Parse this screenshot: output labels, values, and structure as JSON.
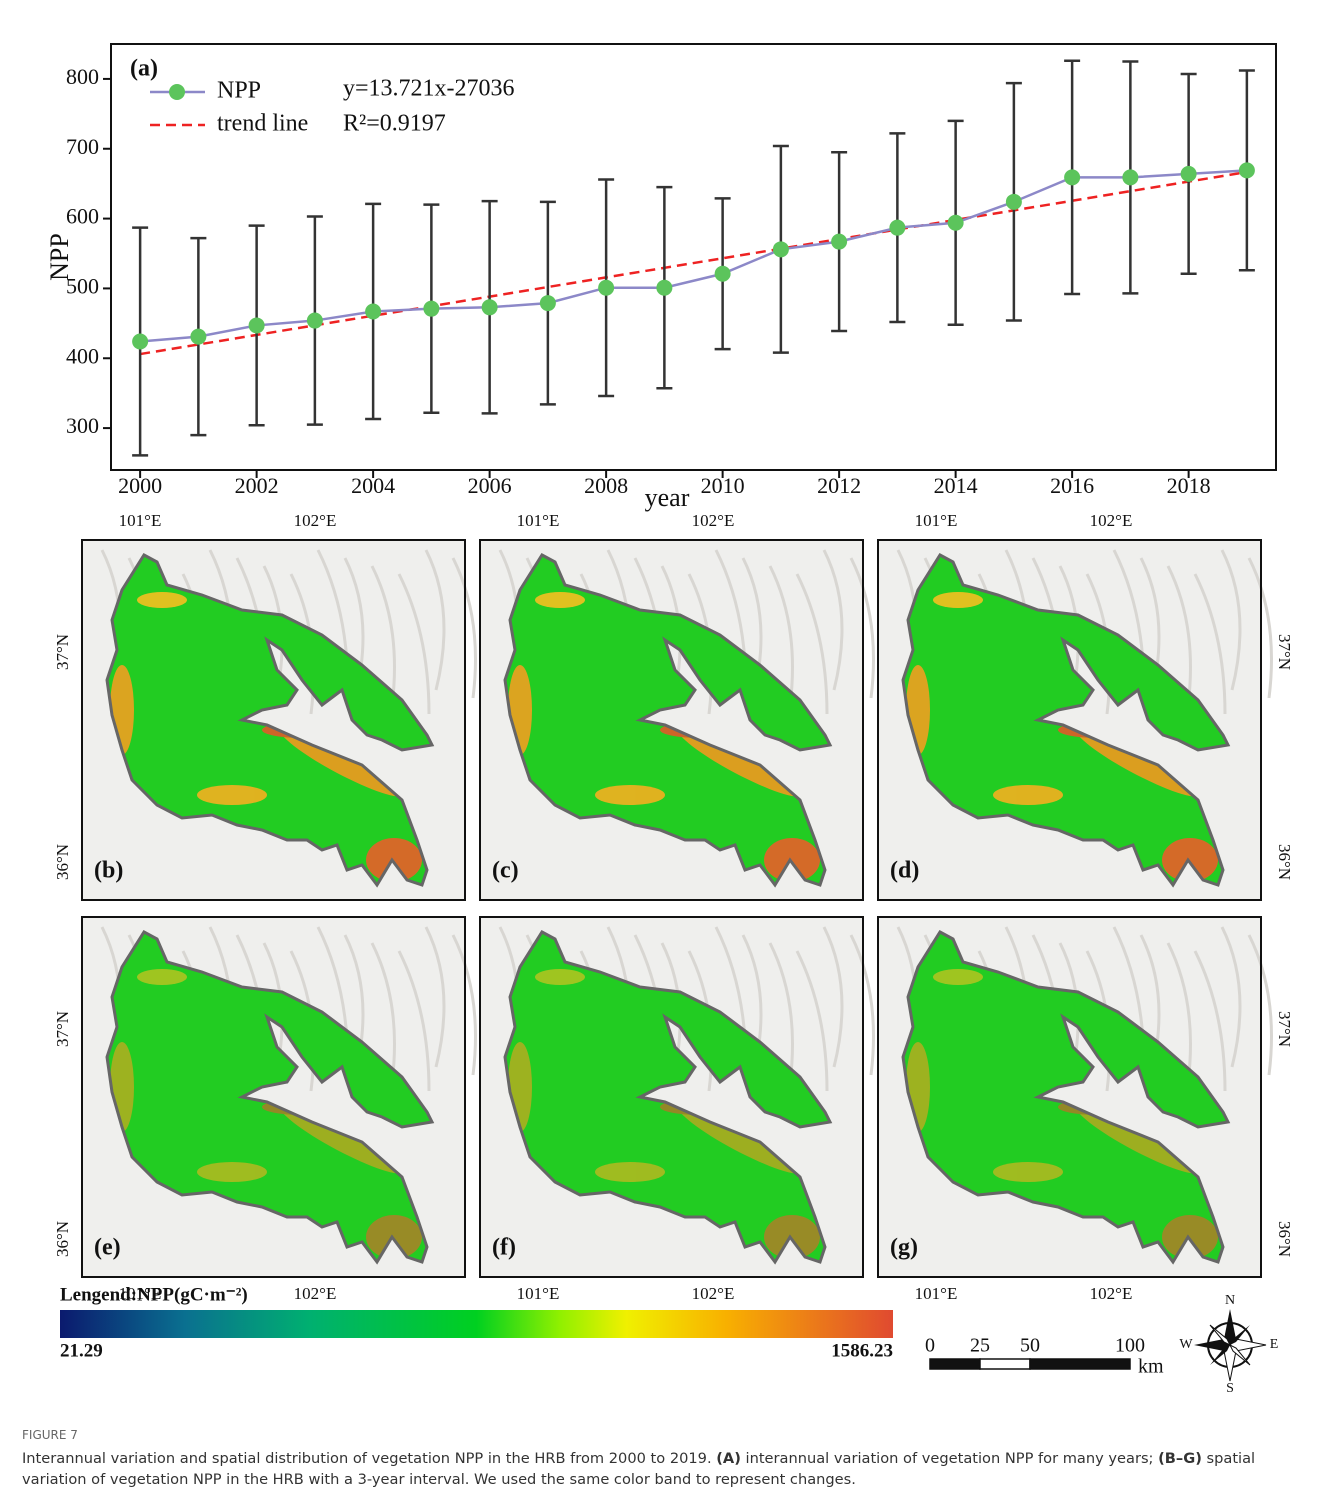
{
  "chart_data": {
    "type": "line",
    "panel_label": "(a)",
    "x_label": "year",
    "y_label": "NPP",
    "x": [
      2000,
      2001,
      2002,
      2003,
      2004,
      2005,
      2006,
      2007,
      2008,
      2009,
      2010,
      2011,
      2012,
      2013,
      2014,
      2015,
      2016,
      2017,
      2018,
      2019
    ],
    "series": [
      {
        "name": "NPP",
        "color": "#8c88c8",
        "marker_color": "#5cc45c",
        "values": [
          424,
          431,
          447,
          454,
          467,
          471,
          473,
          479,
          501,
          501,
          521,
          556,
          567,
          587,
          594,
          624,
          659,
          659,
          664,
          669
        ],
        "errors": [
          163,
          141,
          143,
          149,
          154,
          149,
          152,
          145,
          155,
          144,
          108,
          148,
          128,
          135,
          146,
          170,
          167,
          166,
          143,
          143
        ]
      },
      {
        "name": "trend line",
        "color": "#ee2222",
        "dashed": true,
        "values": [
          406.0,
          419.7,
          433.4,
          447.2,
          460.9,
          474.6,
          488.3,
          502.0,
          515.8,
          529.5,
          543.2,
          556.9,
          570.7,
          584.4,
          598.1,
          611.8,
          625.5,
          639.3,
          653.0,
          666.7
        ]
      }
    ],
    "annotations": [
      "y=13.721x-27036",
      "R²=0.9197"
    ],
    "xlim": [
      1999.5,
      2019.5
    ],
    "xticks": [
      2000,
      2002,
      2004,
      2006,
      2008,
      2010,
      2012,
      2014,
      2016,
      2018
    ],
    "ylim": [
      240,
      850
    ],
    "yticks": [
      300,
      400,
      500,
      600,
      700,
      800
    ],
    "grid": false
  },
  "maps": {
    "panels": [
      "(b)",
      "(c)",
      "(d)",
      "(e)",
      "(f)",
      "(g)"
    ],
    "lon_labels": [
      "101°E",
      "102°E"
    ],
    "lat_labels": [
      "37°N",
      "36°N"
    ]
  },
  "colorbar": {
    "title": "Lengend:NPP(gC·m⁻²)",
    "min": 21.29,
    "max": 1586.23
  },
  "scale_bar": {
    "ticks": [
      0,
      25,
      50,
      100
    ],
    "unit": "km"
  },
  "compass": [
    "N",
    "S",
    "E",
    "W"
  ],
  "caption": {
    "label": "FIGURE 7",
    "parts": [
      "Interannual variation and spatial distribution of vegetation NPP in the HRB from 2000 to 2019. ",
      "(A)",
      " interannual variation of vegetation NPP for many years; ",
      "(B–G)",
      " spatial variation of vegetation NPP in the HRB with a 3-year interval. We used the same color band to represent changes."
    ]
  }
}
